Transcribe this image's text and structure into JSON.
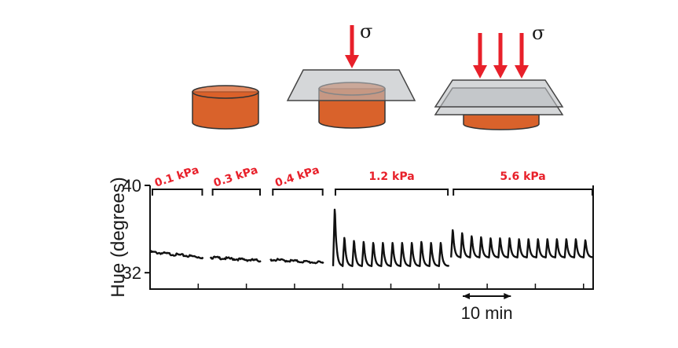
{
  "illustration": {
    "stress_symbol": "σ",
    "cylinder_color": "#d9622b",
    "plate_color": "#b9bcc0",
    "arrow_color": "#e8202a"
  },
  "chart_data": {
    "type": "line",
    "xlabel": "",
    "ylabel": "Hue (degrees)",
    "ylim": [
      30.5,
      40
    ],
    "yticks": [
      32,
      40
    ],
    "x_unit": "min",
    "xlim": [
      0,
      92
    ],
    "scale_bar": {
      "label": "10 min",
      "length_min": 10
    },
    "trace_color": "#111111",
    "segments": [
      {
        "label": "0.1 kPa",
        "x_range": [
          0,
          11
        ],
        "kind": "flat",
        "y_start": 33.9,
        "y_end": 33.4
      },
      {
        "label": "0.3 kPa",
        "x_range": [
          12.5,
          23
        ],
        "kind": "flat",
        "y_start": 33.4,
        "y_end": 33.1
      },
      {
        "label": "0.4 kPa",
        "x_range": [
          25,
          36
        ],
        "kind": "flat",
        "y_start": 33.2,
        "y_end": 32.9
      },
      {
        "label": "1.2 kPa",
        "x_range": [
          38,
          62
        ],
        "kind": "oscillation",
        "baseline": 32.6,
        "peaks": [
          38.2,
          35.4,
          35.1,
          35.0,
          34.9,
          34.9,
          34.9,
          34.9,
          34.9,
          35.0,
          34.9,
          34.9
        ]
      },
      {
        "label": "5.6 kPa",
        "x_range": [
          62.5,
          92
        ],
        "kind": "oscillation",
        "baseline": 33.4,
        "peaks": [
          36.1,
          35.8,
          35.5,
          35.4,
          35.3,
          35.3,
          35.3,
          35.2,
          35.2,
          35.2,
          35.2,
          35.2,
          35.2,
          35.2,
          35.1
        ]
      }
    ]
  }
}
